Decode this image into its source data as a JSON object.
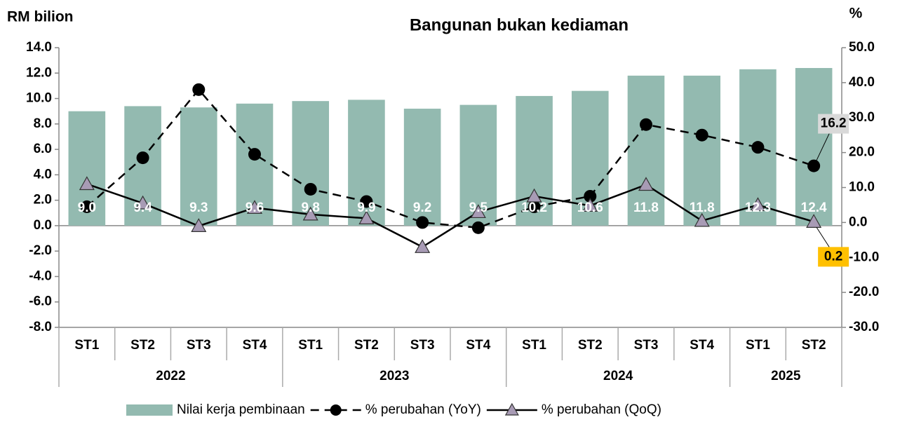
{
  "chart_data": {
    "type": "bar-line",
    "title": "Bangunan bukan kediaman",
    "y_label": "RM bilion",
    "y2_label": "%",
    "categories": [
      "ST1",
      "ST2",
      "ST3",
      "ST4",
      "ST1",
      "ST2",
      "ST3",
      "ST4",
      "ST1",
      "ST2",
      "ST3",
      "ST4",
      "ST1",
      "ST2"
    ],
    "group_labels": [
      "2022",
      "2023",
      "2024",
      "2025"
    ],
    "group_sizes": [
      4,
      4,
      4,
      2
    ],
    "ylim": [
      -8,
      14
    ],
    "yticks": [
      {
        "value": -8,
        "label": "-8.0"
      },
      {
        "value": -6,
        "label": "-6.0"
      },
      {
        "value": -4,
        "label": "-4.0"
      },
      {
        "value": -2,
        "label": "-2.0"
      },
      {
        "value": 0,
        "label": "0.0"
      },
      {
        "value": 2,
        "label": "2.0"
      },
      {
        "value": 4,
        "label": "4.0"
      },
      {
        "value": 6,
        "label": "6.0"
      },
      {
        "value": 8,
        "label": "8.0"
      },
      {
        "value": 10,
        "label": "10.0"
      },
      {
        "value": 12,
        "label": "12.0"
      },
      {
        "value": 14,
        "label": "14.0"
      }
    ],
    "y2lim": [
      -30,
      50
    ],
    "y2ticks": [
      {
        "value": -30,
        "label": "-30.0"
      },
      {
        "value": -20,
        "label": "-20.0"
      },
      {
        "value": -10,
        "label": "-10.0"
      },
      {
        "value": 0,
        "label": "0.0"
      },
      {
        "value": 10,
        "label": "10.0"
      },
      {
        "value": 20,
        "label": "20.0"
      },
      {
        "value": 30,
        "label": "30.0"
      },
      {
        "value": 40,
        "label": "40.0"
      },
      {
        "value": 50,
        "label": "50.0"
      }
    ],
    "series": [
      {
        "name": "Nilai kerja pembinaan",
        "type": "bar",
        "color": "#93bab0",
        "values": [
          9.0,
          9.4,
          9.3,
          9.6,
          9.8,
          9.9,
          9.2,
          9.5,
          10.2,
          10.6,
          11.8,
          11.8,
          12.3,
          12.4
        ],
        "value_labels": [
          "9.0",
          "9.4",
          "9.3",
          "9.6",
          "9.8",
          "9.9",
          "9.2",
          "9.5",
          "10.2",
          "10.6",
          "11.8",
          "11.8",
          "12.3",
          "12.4"
        ]
      },
      {
        "name": "% perubahan (YoY)",
        "type": "line",
        "axis": "y2",
        "color": "#000000",
        "dash": true,
        "marker": "circle",
        "values": [
          4.5,
          18.5,
          38,
          19.5,
          9.5,
          6,
          0,
          -1.5,
          4.5,
          7.5,
          28,
          25,
          21.5,
          16.2
        ],
        "value_labels": [
          null,
          null,
          null,
          null,
          null,
          null,
          null,
          null,
          null,
          null,
          null,
          null,
          null,
          "16.2"
        ],
        "label_color": "#d9d9d9"
      },
      {
        "name": "% perubahan (QoQ)",
        "type": "line",
        "axis": "y2",
        "color": "#000000",
        "dash": false,
        "marker": "triangle",
        "marker_color": "#a89bb5",
        "values": [
          11,
          5.5,
          -1,
          4.2,
          2.3,
          1.2,
          -7,
          3,
          7.5,
          4.8,
          10.8,
          0.5,
          5,
          0.2
        ],
        "value_labels": [
          null,
          null,
          null,
          null,
          null,
          null,
          null,
          null,
          null,
          null,
          null,
          null,
          null,
          "0.2"
        ],
        "label_color": "#ffc000"
      }
    ]
  }
}
